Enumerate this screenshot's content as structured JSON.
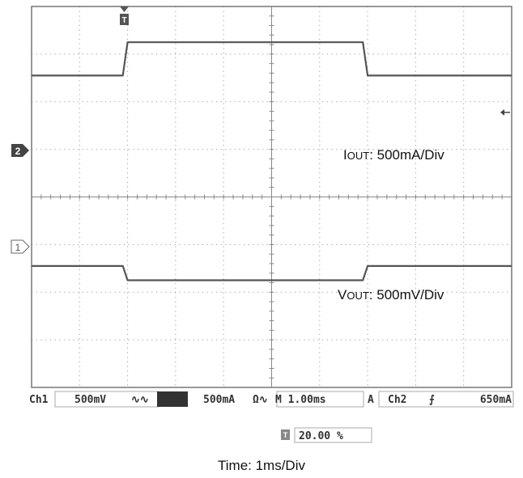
{
  "chart_data": {
    "type": "line",
    "grid": true,
    "x_divisions": 10,
    "y_divisions": 8,
    "x": [
      0,
      1.9,
      2.0,
      6.9,
      7.0,
      10
    ],
    "series": [
      {
        "name": "Iout",
        "channel": "2",
        "color": "#555555",
        "values_div": [
          2.55,
          2.55,
          3.25,
          3.25,
          2.55,
          2.55
        ]
      },
      {
        "name": "Vout",
        "channel": "1",
        "color": "#555555",
        "values_div": [
          -1.45,
          -1.45,
          -1.75,
          -1.75,
          -1.45,
          -1.45
        ]
      }
    ],
    "annotations": {
      "iout": {
        "main": "I",
        "sub": "OUT",
        "suffix": ": 500mA/Div"
      },
      "vout": {
        "main": "V",
        "sub": "OUT",
        "suffix": ": 500mV/Div"
      }
    },
    "status_bar": {
      "ch1": "Ch1",
      "ch1_scale": "500mV",
      "ch1_coupling": "∿∿",
      "ch2": "Ch2",
      "ch2_scale": "500mA",
      "ch2_coupling": "Ω∿",
      "timebase": "M 1.00ms",
      "trigger_mode": "A",
      "trigger_source": "Ch2",
      "trigger_slope": "⨍",
      "trigger_level": "650mA"
    },
    "trigger_position": "20.00 %",
    "markers": {
      "ch2": "2",
      "ch1": "1",
      "trigger": "T"
    },
    "x_caption": "Time: 1ms/Div"
  }
}
